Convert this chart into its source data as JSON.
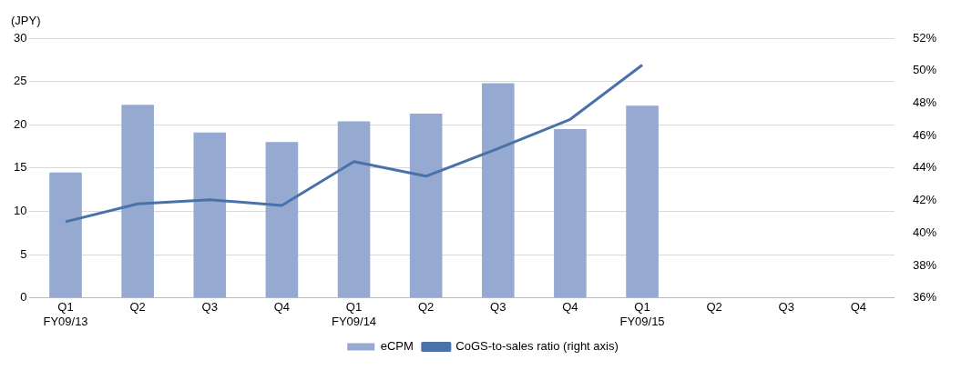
{
  "chart_data": {
    "type": "bar",
    "ylabel": "(JPY)",
    "categories": [
      "Q1\nFY09/13",
      "Q2",
      "Q3",
      "Q4",
      "Q1\nFY09/14",
      "Q2",
      "Q3",
      "Q4",
      "Q1\nFY09/15",
      "Q2",
      "Q3",
      "Q4"
    ],
    "series": [
      {
        "name": "eCPM",
        "color": "#95a9d1",
        "values": [
          14.5,
          22.3,
          19.1,
          18.0,
          20.4,
          21.3,
          24.8,
          19.5,
          22.2,
          null,
          null,
          null
        ]
      },
      {
        "name": "CoGS-to-sales ratio (right axis)",
        "type": "line",
        "axis": "y2",
        "color": "#4a72aa",
        "values": [
          40.7,
          41.8,
          42.05,
          41.7,
          44.4,
          43.5,
          45.2,
          47.0,
          50.35,
          null,
          null,
          null
        ]
      }
    ],
    "ylim": [
      0,
      30
    ],
    "yticks": [
      0,
      5,
      10,
      15,
      20,
      25,
      30
    ],
    "y2lim": [
      36,
      52
    ],
    "y2ticks": [
      {
        "value": 36,
        "label": "36%"
      },
      {
        "value": 38,
        "label": "38%"
      },
      {
        "value": 40,
        "label": "40%"
      },
      {
        "value": 42,
        "label": "42%"
      },
      {
        "value": 44,
        "label": "44%"
      },
      {
        "value": 46,
        "label": "46%"
      },
      {
        "value": 48,
        "label": "48%"
      },
      {
        "value": 50,
        "label": "50%"
      },
      {
        "value": 52,
        "label": "52%"
      }
    ],
    "grid": "y",
    "legend": "bottom",
    "marker": "none"
  }
}
